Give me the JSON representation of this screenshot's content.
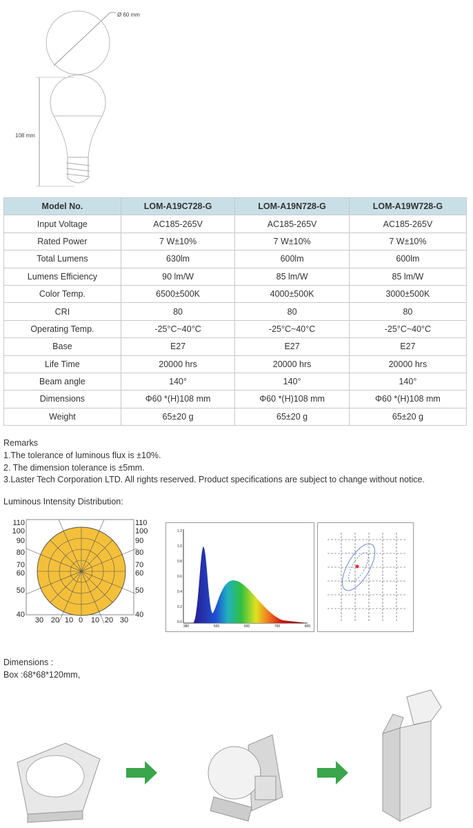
{
  "drawing": {
    "diameter": "Ø 60 mm",
    "height": "108 mm"
  },
  "table": {
    "header": [
      "Model No.",
      "LOM-A19C728-G",
      "LOM-A19N728-G",
      "LOM-A19W728-G"
    ],
    "rows": [
      [
        "Input Voltage",
        "AC185-265V",
        "AC185-265V",
        "AC185-265V"
      ],
      [
        "Rated Power",
        "7 W±10%",
        "7 W±10%",
        "7 W±10%"
      ],
      [
        "Total Lumens",
        "630lm",
        "600lm",
        "600lm"
      ],
      [
        "Lumens Efficiency",
        "90 lm/W",
        "85 lm/W",
        "85 lm/W"
      ],
      [
        "Color Temp.",
        "6500±500K",
        "4000±500K",
        "3000±500K"
      ],
      [
        "CRI",
        "80",
        "80",
        "80"
      ],
      [
        "Operating Temp.",
        "-25°C~40°C",
        "-25°C~40°C",
        "-25°C~40°C"
      ],
      [
        "Base",
        "E27",
        "E27",
        "E27"
      ],
      [
        "Life Time",
        "20000 hrs",
        "20000 hrs",
        "20000 hrs"
      ],
      [
        "Beam angle",
        "140°",
        "140°",
        "140°"
      ],
      [
        "Dimensions",
        "Φ60 *(H)108 mm",
        "Φ60 *(H)108 mm",
        "Φ60 *(H)108 mm"
      ],
      [
        "Weight",
        "65±20 g",
        "65±20 g",
        "65±20 g"
      ]
    ]
  },
  "remarks": {
    "title": "Remarks",
    "lines": [
      "1.The tolerance of luminous flux is ±10%.",
      "2. The dimension tolerance is ±5mm.",
      "3.Laster Tech Corporation LTD. All rights reserved. Product specifications are subject to change without notice."
    ]
  },
  "distribution": {
    "title": "Luminous Intensity Distribution:",
    "polar_left": [
      "110",
      "100",
      "90",
      "80",
      "70",
      "60",
      "50",
      "40"
    ],
    "polar_right": [
      "110",
      "100",
      "90",
      "80",
      "70",
      "60",
      "50",
      "40"
    ],
    "polar_bottom": [
      "30",
      "20",
      "10",
      "0",
      "10",
      "20",
      "30"
    ],
    "spectrum_x": [
      "380",
      "500",
      "600",
      "700",
      "800"
    ],
    "spectrum_y": [
      "1.2",
      "1.0",
      "0.8",
      "0.6",
      "0.4",
      "0.2",
      "0.0"
    ]
  },
  "packing": {
    "title": "Dimensions :",
    "box": "Box :68*68*120mm,"
  }
}
